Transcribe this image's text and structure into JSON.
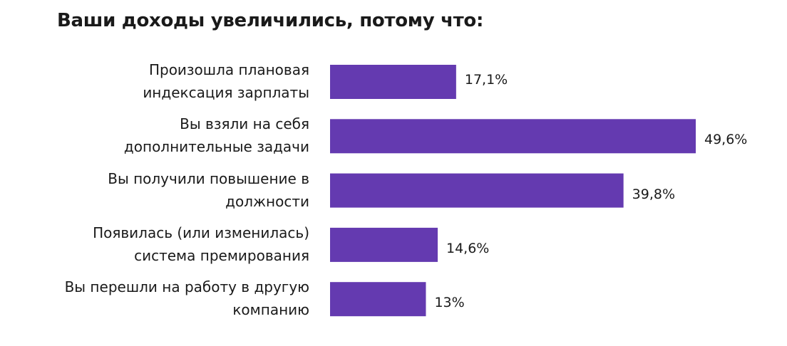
{
  "chart_data": {
    "type": "bar",
    "orientation": "horizontal",
    "title": "Ваши доходы увеличились, потому что:",
    "categories": [
      [
        "Произошла плановая",
        "индексация зарплаты"
      ],
      [
        "Вы взяли на себя",
        "дополнительные задачи"
      ],
      [
        "Вы получили повышение в",
        "должности"
      ],
      [
        "Появилась (или изменилась)",
        "система премирования"
      ],
      [
        "Вы перешли на работу в другую",
        "компанию"
      ]
    ],
    "values": [
      17.1,
      49.6,
      39.8,
      14.6,
      13
    ],
    "data_labels": [
      "17,1%",
      "49,6%",
      "39,8%",
      "14,6%",
      "13%"
    ],
    "unit": "%",
    "xlim": [
      0,
      49.6
    ],
    "grid": false,
    "bar_color": "#643AB0"
  }
}
